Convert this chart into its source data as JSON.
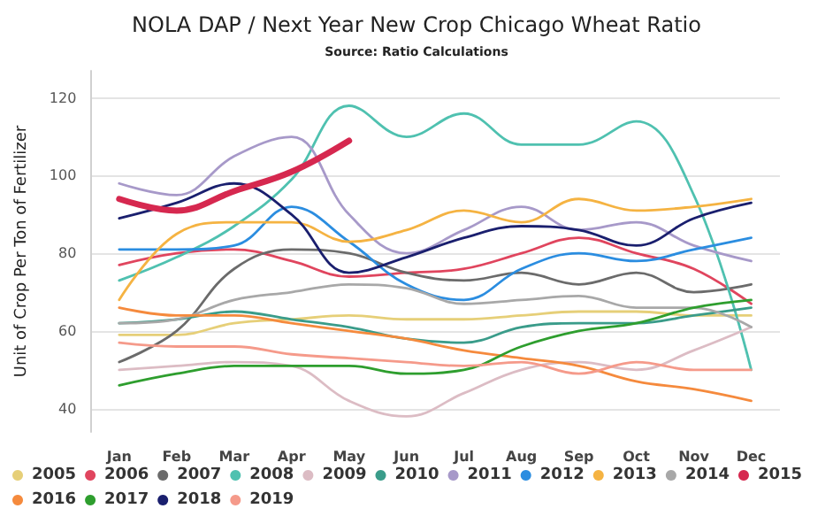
{
  "chart_data": {
    "type": "line",
    "title": "NOLA DAP / Next Year New Crop Chicago Wheat Ratio",
    "subtitle": "Source: Ratio Calculations",
    "ylabel": "Unit of Crop Per Ton of Fertilizer",
    "categories": [
      "Jan",
      "Feb",
      "Mar",
      "Apr",
      "May",
      "Jun",
      "Jul",
      "Aug",
      "Sep",
      "Oct",
      "Nov",
      "Dec"
    ],
    "ylim": [
      34,
      127
    ],
    "yticks": [
      40,
      60,
      80,
      100,
      120
    ],
    "grid": "y",
    "legend": "bottom",
    "marker": "none",
    "line_style": "solid",
    "series": [
      {
        "name": "2005",
        "color": "#e6cf78",
        "values": [
          59,
          59,
          62,
          63,
          64,
          63,
          63,
          64,
          65,
          65,
          64,
          64
        ]
      },
      {
        "name": "2006",
        "color": "#e0455e",
        "values": [
          77,
          80,
          81,
          78,
          74,
          75,
          76,
          80,
          84,
          80,
          76,
          67
        ]
      },
      {
        "name": "2007",
        "color": "#6b6b6b",
        "values": [
          52,
          60,
          76,
          81,
          80,
          75,
          73,
          75,
          72,
          75,
          70,
          72
        ]
      },
      {
        "name": "2008",
        "color": "#4fc1b0",
        "values": [
          73,
          79,
          87,
          99,
          118,
          110,
          116,
          108,
          108,
          114,
          95,
          50
        ]
      },
      {
        "name": "2009",
        "color": "#dcbcc4",
        "values": [
          50,
          51,
          52,
          51,
          42,
          38,
          44,
          50,
          52,
          50,
          55,
          61
        ]
      },
      {
        "name": "2010",
        "color": "#3a9c8a",
        "values": [
          62,
          63,
          65,
          63,
          61,
          58,
          57,
          61,
          62,
          62,
          64,
          66
        ]
      },
      {
        "name": "2011",
        "color": "#a799c9",
        "values": [
          98,
          95,
          105,
          110,
          90,
          80,
          86,
          92,
          86,
          88,
          82,
          78
        ]
      },
      {
        "name": "2012",
        "color": "#2b8de0",
        "values": [
          81,
          81,
          82,
          92,
          83,
          72,
          68,
          76,
          80,
          78,
          81,
          84
        ]
      },
      {
        "name": "2013",
        "color": "#f5b342",
        "values": [
          68,
          85,
          88,
          88,
          83,
          86,
          91,
          88,
          94,
          91,
          92,
          94
        ]
      },
      {
        "name": "2014",
        "color": "#a8a8a8",
        "values": [
          62,
          63,
          68,
          70,
          72,
          71,
          67,
          68,
          69,
          66,
          66,
          61
        ]
      },
      {
        "name": "2015",
        "color": "#d6284f",
        "values": [
          94,
          91,
          96,
          101,
          109,
          null,
          null,
          null,
          null,
          null,
          null,
          null
        ]
      },
      {
        "name": "2016",
        "color": "#f58a3d",
        "values": [
          66,
          64,
          64,
          62,
          60,
          58,
          55,
          53,
          51,
          47,
          45,
          42
        ]
      },
      {
        "name": "2017",
        "color": "#2e9e2e",
        "values": [
          46,
          49,
          51,
          51,
          51,
          49,
          50,
          56,
          60,
          62,
          66,
          68
        ]
      },
      {
        "name": "2018",
        "color": "#1a1f6e",
        "values": [
          89,
          93,
          98,
          90,
          75,
          79,
          84,
          87,
          86,
          82,
          89,
          93
        ]
      },
      {
        "name": "2019",
        "color": "#f59a8a",
        "values": [
          57,
          56,
          56,
          54,
          53,
          52,
          51,
          52,
          49,
          52,
          50,
          50
        ]
      }
    ]
  }
}
